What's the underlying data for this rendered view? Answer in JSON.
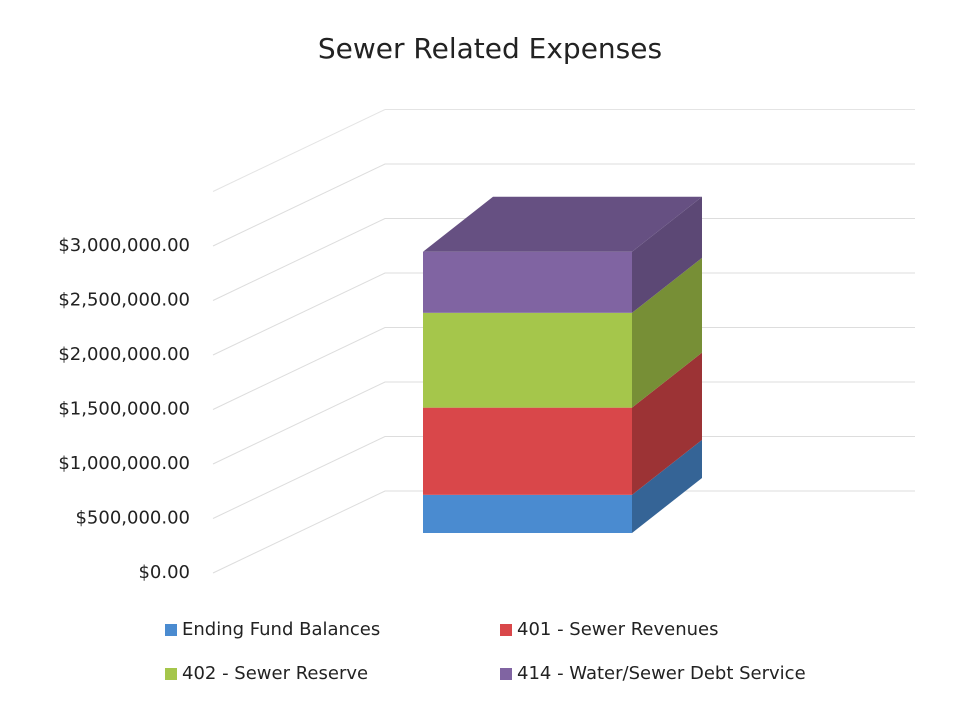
{
  "chart_data": {
    "type": "stacked_bar_3d",
    "title": "Sewer Related Expenses",
    "categories": [
      null
    ],
    "series": [
      {
        "name": "Ending Fund Balances",
        "color": "#4a8bd0",
        "values": [
          350000
        ]
      },
      {
        "name": "401 - Sewer Revenues",
        "color": "#d9474a",
        "values": [
          800000
        ]
      },
      {
        "name": "402 - Sewer Reserve",
        "color": "#a5c64b",
        "values": [
          870000
        ]
      },
      {
        "name": "414 - Water/Sewer Debt Service",
        "color": "#8064a2",
        "values": [
          560000
        ]
      }
    ],
    "ylim": [
      0,
      3500000
    ],
    "yticks": [
      {
        "value": 0,
        "label": "$0.00"
      },
      {
        "value": 500000,
        "label": "$500,000.00"
      },
      {
        "value": 1000000,
        "label": "$1,000,000.00"
      },
      {
        "value": 1500000,
        "label": "$1,500,000.00"
      },
      {
        "value": 2000000,
        "label": "$2,000,000.00"
      },
      {
        "value": 2500000,
        "label": "$2,500,000.00"
      },
      {
        "value": 3000000,
        "label": "$3,000,000.00"
      }
    ],
    "grid": true,
    "legend": "bottom"
  }
}
